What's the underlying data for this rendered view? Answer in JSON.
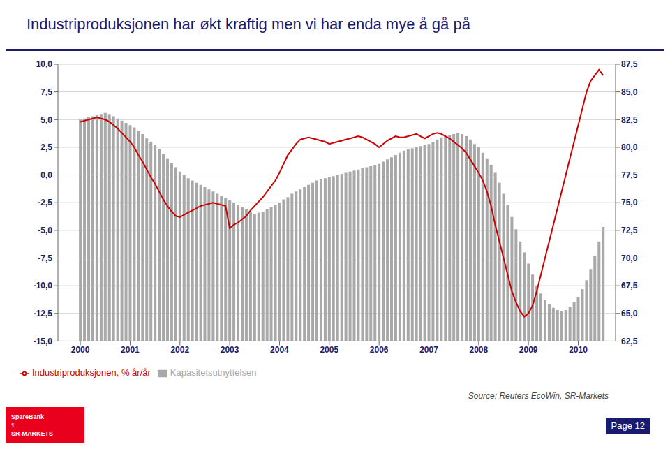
{
  "chart_data": {
    "type": "bar_line",
    "title": "Industriproduksjonen har økt kraftig men vi har enda mye å gå på",
    "annotations": [
      "Source: Reuters EcoWin, SR-Markets",
      "Page 12",
      "SpareBank\n1\nSR-MARKETS"
    ],
    "x": [
      2000.0,
      2000.083,
      2000.167,
      2000.25,
      2000.333,
      2000.417,
      2000.5,
      2000.583,
      2000.667,
      2000.75,
      2000.833,
      2000.917,
      2001.0,
      2001.083,
      2001.167,
      2001.25,
      2001.333,
      2001.417,
      2001.5,
      2001.583,
      2001.667,
      2001.75,
      2001.833,
      2001.917,
      2002.0,
      2002.083,
      2002.167,
      2002.25,
      2002.333,
      2002.417,
      2002.5,
      2002.583,
      2002.667,
      2002.75,
      2002.833,
      2002.917,
      2003.0,
      2003.083,
      2003.167,
      2003.25,
      2003.333,
      2003.417,
      2003.5,
      2003.583,
      2003.667,
      2003.75,
      2003.833,
      2003.917,
      2004.0,
      2004.083,
      2004.167,
      2004.25,
      2004.333,
      2004.417,
      2004.5,
      2004.583,
      2004.667,
      2004.75,
      2004.833,
      2004.917,
      2005.0,
      2005.083,
      2005.167,
      2005.25,
      2005.333,
      2005.417,
      2005.5,
      2005.583,
      2005.667,
      2005.75,
      2005.833,
      2005.917,
      2006.0,
      2006.083,
      2006.167,
      2006.25,
      2006.333,
      2006.417,
      2006.5,
      2006.583,
      2006.667,
      2006.75,
      2006.833,
      2006.917,
      2007.0,
      2007.083,
      2007.167,
      2007.25,
      2007.333,
      2007.417,
      2007.5,
      2007.583,
      2007.667,
      2007.75,
      2007.833,
      2007.917,
      2008.0,
      2008.083,
      2008.167,
      2008.25,
      2008.333,
      2008.417,
      2008.5,
      2008.583,
      2008.667,
      2008.75,
      2008.833,
      2008.917,
      2009.0,
      2009.083,
      2009.167,
      2009.25,
      2009.333,
      2009.417,
      2009.5,
      2009.583,
      2009.667,
      2009.75,
      2009.833,
      2009.917,
      2010.0,
      2010.083,
      2010.167,
      2010.25,
      2010.333,
      2010.417,
      2010.5
    ],
    "series": [
      {
        "name": "Kapasitetsutnyttelsen",
        "type": "bar",
        "axis": "y2",
        "color": "#a8a8a8",
        "values": [
          82.5,
          82.6,
          82.7,
          82.8,
          82.9,
          83.0,
          83.1,
          83.0,
          82.8,
          82.6,
          82.4,
          82.2,
          82.0,
          81.8,
          81.5,
          81.2,
          80.8,
          80.5,
          80.2,
          79.8,
          79.4,
          79.0,
          78.6,
          78.2,
          77.8,
          77.5,
          77.2,
          77.0,
          76.8,
          76.6,
          76.4,
          76.2,
          76.0,
          75.8,
          75.6,
          75.4,
          75.2,
          75.0,
          74.8,
          74.6,
          74.4,
          74.2,
          74.0,
          74.1,
          74.2,
          74.4,
          74.6,
          74.8,
          75.0,
          75.3,
          75.5,
          75.8,
          76.0,
          76.2,
          76.4,
          76.6,
          76.8,
          77.0,
          77.1,
          77.2,
          77.3,
          77.4,
          77.5,
          77.6,
          77.7,
          77.8,
          77.9,
          78.0,
          78.1,
          78.2,
          78.3,
          78.4,
          78.5,
          78.7,
          78.9,
          79.1,
          79.3,
          79.5,
          79.7,
          79.8,
          79.9,
          80.0,
          80.1,
          80.2,
          80.3,
          80.5,
          80.7,
          80.9,
          81.0,
          81.1,
          81.2,
          81.3,
          81.2,
          81.0,
          80.7,
          80.3,
          80.0,
          79.5,
          79.0,
          78.4,
          77.7,
          76.8,
          75.8,
          74.8,
          73.7,
          72.6,
          71.5,
          70.5,
          69.5,
          68.5,
          67.5,
          66.8,
          66.2,
          65.8,
          65.5,
          65.3,
          65.2,
          65.3,
          65.6,
          66.0,
          66.5,
          67.2,
          68.0,
          69.0,
          70.2,
          71.5,
          72.8
        ]
      },
      {
        "name": "Industriproduksjonen, % år/år",
        "type": "line",
        "color": "#cc0000",
        "values": [
          4.8,
          4.9,
          5.0,
          5.1,
          5.2,
          5.1,
          5.0,
          4.8,
          4.5,
          4.2,
          3.8,
          3.4,
          3.0,
          2.5,
          1.8,
          1.2,
          0.5,
          -0.2,
          -0.8,
          -1.5,
          -2.2,
          -2.8,
          -3.3,
          -3.7,
          -3.8,
          -3.6,
          -3.4,
          -3.2,
          -3.0,
          -2.8,
          -2.7,
          -2.6,
          -2.5,
          -2.6,
          -2.7,
          -2.8,
          -4.8,
          -4.5,
          -4.3,
          -4.0,
          -3.7,
          -3.2,
          -2.8,
          -2.4,
          -2.0,
          -1.5,
          -1.0,
          -0.5,
          0.2,
          1.0,
          1.8,
          2.3,
          2.8,
          3.2,
          3.3,
          3.4,
          3.3,
          3.2,
          3.1,
          3.0,
          2.8,
          2.9,
          3.0,
          3.1,
          3.2,
          3.3,
          3.4,
          3.5,
          3.4,
          3.2,
          3.0,
          2.8,
          2.5,
          2.8,
          3.1,
          3.3,
          3.5,
          3.4,
          3.4,
          3.5,
          3.6,
          3.7,
          3.5,
          3.3,
          3.5,
          3.7,
          3.8,
          3.7,
          3.5,
          3.3,
          3.0,
          2.7,
          2.4,
          2.0,
          1.4,
          0.8,
          0.2,
          -0.5,
          -1.5,
          -2.8,
          -4.5,
          -6.0,
          -7.5,
          -9.0,
          -10.5,
          -11.5,
          -12.3,
          -12.8,
          -12.5,
          -11.8,
          -10.5,
          -9.0,
          -7.5,
          -6.0,
          -4.5,
          -3.0,
          -1.5,
          0.0,
          1.5,
          3.0,
          4.5,
          6.0,
          7.5,
          8.5,
          9.0,
          9.5,
          9.0
        ]
      }
    ],
    "xlim": [
      1999.55,
      2010.75
    ],
    "xticks": [
      2000,
      2001,
      2002,
      2003,
      2004,
      2005,
      2006,
      2007,
      2008,
      2009,
      2010
    ],
    "ylim": [
      -15.0,
      10.0
    ],
    "yticks": [
      {
        "value": -15.0,
        "label": "-15,0"
      },
      {
        "value": -12.5,
        "label": "-12,5"
      },
      {
        "value": -10.0,
        "label": "-10,0"
      },
      {
        "value": -7.5,
        "label": "-7,5"
      },
      {
        "value": -5.0,
        "label": "-5,0"
      },
      {
        "value": -2.5,
        "label": "-2,5"
      },
      {
        "value": 0.0,
        "label": "0,0"
      },
      {
        "value": 2.5,
        "label": "2,5"
      },
      {
        "value": 5.0,
        "label": "5,0"
      },
      {
        "value": 7.5,
        "label": "7,5"
      },
      {
        "value": 10.0,
        "label": "10,0"
      }
    ],
    "y2lim": [
      62.5,
      87.5
    ],
    "y2ticks": [
      {
        "value": 62.5,
        "label": "62,5"
      },
      {
        "value": 65.0,
        "label": "65,0"
      },
      {
        "value": 67.5,
        "label": "67,5"
      },
      {
        "value": 70.0,
        "label": "70,0"
      },
      {
        "value": 72.5,
        "label": "72,5"
      },
      {
        "value": 75.0,
        "label": "75,0"
      },
      {
        "value": 77.5,
        "label": "77,5"
      },
      {
        "value": 80.0,
        "label": "80,0"
      },
      {
        "value": 82.5,
        "label": "82,5"
      },
      {
        "value": 85.0,
        "label": "85,0"
      },
      {
        "value": 87.5,
        "label": "87,5"
      }
    ],
    "grid": true,
    "legend": "bottom"
  }
}
